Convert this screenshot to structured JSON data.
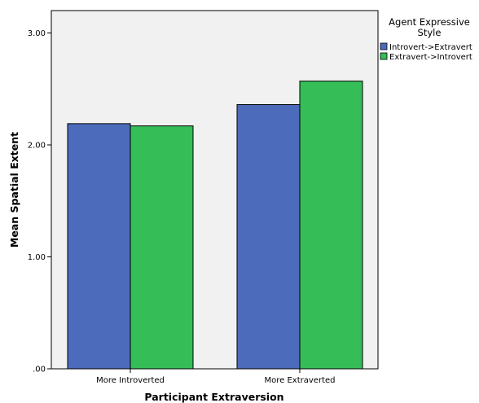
{
  "chart_data": {
    "type": "bar",
    "title": "",
    "xlabel": "Participant Extraversion",
    "ylabel": "Mean Spatial Extent",
    "categories": [
      "More Introverted",
      "More Extraverted"
    ],
    "ylim": [
      0,
      3.2
    ],
    "yticks": [
      0,
      1,
      2,
      3
    ],
    "ytick_labels": [
      ".00",
      "1.00",
      "2.00",
      "3.00"
    ],
    "grid": false,
    "legend": {
      "title_lines": [
        "Agent Expressive",
        "Style"
      ],
      "placement": "right"
    },
    "series": [
      {
        "name": "Introvert->Extravert",
        "color": "#4c6bbb",
        "values": [
          2.19,
          2.36
        ]
      },
      {
        "name": "Extravert->Introvert",
        "color": "#35bd58",
        "values": [
          2.17,
          2.57
        ]
      }
    ]
  }
}
